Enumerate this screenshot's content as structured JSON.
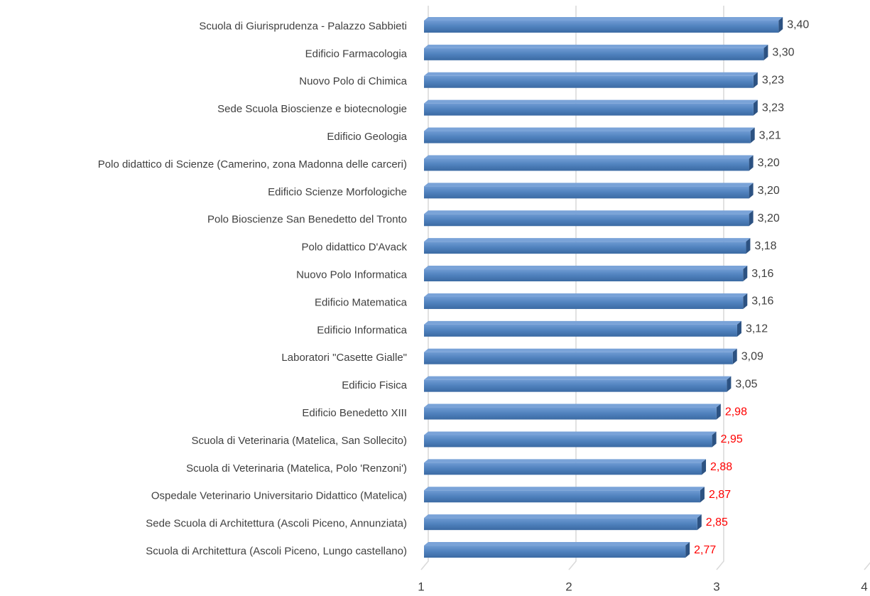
{
  "chart_data": {
    "type": "barh",
    "categories": [
      "Scuola di Giurisprudenza - Palazzo Sabbieti",
      "Edificio Farmacologia",
      "Nuovo Polo di Chimica",
      "Sede Scuola Bioscienze e biotecnologie",
      "Edificio Geologia",
      "Polo didattico di Scienze (Camerino, zona Madonna delle carceri)",
      "Edificio Scienze Morfologiche",
      "Polo Bioscienze San Benedetto del Tronto",
      "Polo didattico D'Avack",
      "Nuovo Polo Informatica",
      "Edificio Matematica",
      "Edificio Informatica",
      "Laboratori \"Casette Gialle\"",
      "Edificio Fisica",
      "Edificio Benedetto XIII",
      "Scuola di Veterinaria (Matelica, San Sollecito)",
      "Scuola di Veterinaria (Matelica, Polo 'Renzoni')",
      "Ospedale Veterinario Universitario Didattico (Matelica)",
      "Sede Scuola di Architettura (Ascoli Piceno, Annunziata)",
      "Scuola di Architettura (Ascoli Piceno, Lungo castellano)"
    ],
    "values": [
      3.4,
      3.3,
      3.23,
      3.23,
      3.21,
      3.2,
      3.2,
      3.2,
      3.18,
      3.16,
      3.16,
      3.12,
      3.09,
      3.05,
      2.98,
      2.95,
      2.88,
      2.87,
      2.85,
      2.77
    ],
    "value_labels": [
      "3,40",
      "3,30",
      "3,23",
      "3,23",
      "3,21",
      "3,20",
      "3,20",
      "3,20",
      "3,18",
      "3,16",
      "3,16",
      "3,12",
      "3,09",
      "3,05",
      "2,98",
      "2,95",
      "2,88",
      "2,87",
      "2,85",
      "2,77"
    ],
    "value_label_colors": [
      "#404040",
      "#404040",
      "#404040",
      "#404040",
      "#404040",
      "#404040",
      "#404040",
      "#404040",
      "#404040",
      "#404040",
      "#404040",
      "#404040",
      "#404040",
      "#404040",
      "#ff0000",
      "#ff0000",
      "#ff0000",
      "#ff0000",
      "#ff0000",
      "#ff0000"
    ],
    "color": "#4f81bd",
    "xlim": [
      1,
      4
    ],
    "xticks": [
      1,
      2,
      3,
      4
    ],
    "grid": true
  }
}
